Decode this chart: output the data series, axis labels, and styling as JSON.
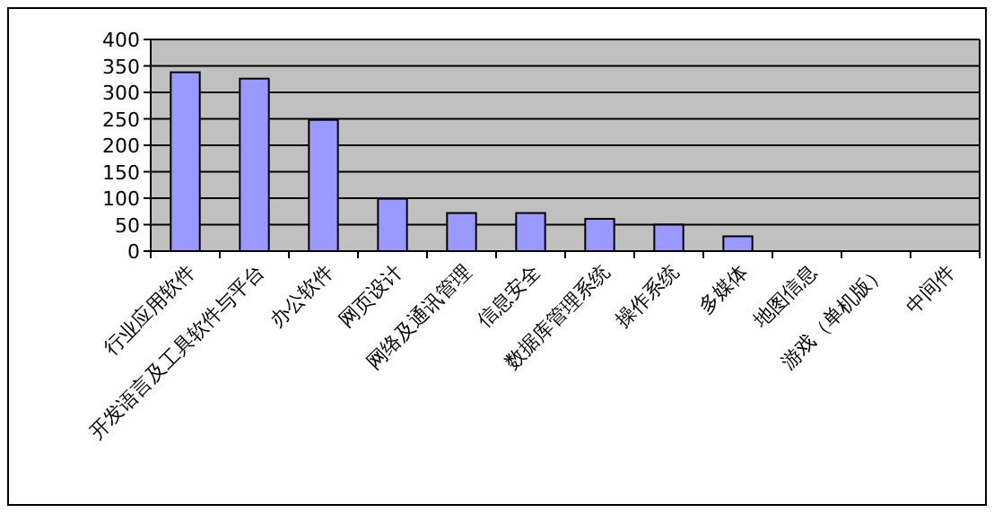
{
  "chart_data": {
    "type": "bar",
    "categories": [
      "行业应用软件",
      "开发语言及工具软件与平台",
      "办公软件",
      "网页设计",
      "网络及通讯管理",
      "信息安全",
      "数据库管理系统",
      "操作系统",
      "多媒体",
      "地图信息",
      "游戏（单机版）",
      "中间件"
    ],
    "values": [
      338,
      326,
      248,
      99,
      72,
      72,
      61,
      50,
      28,
      0,
      0,
      0
    ],
    "color": "#9999ff",
    "ylim": [
      0,
      400
    ],
    "yticks": [
      0,
      50,
      100,
      150,
      200,
      250,
      300,
      350,
      400
    ],
    "grid": "y"
  }
}
